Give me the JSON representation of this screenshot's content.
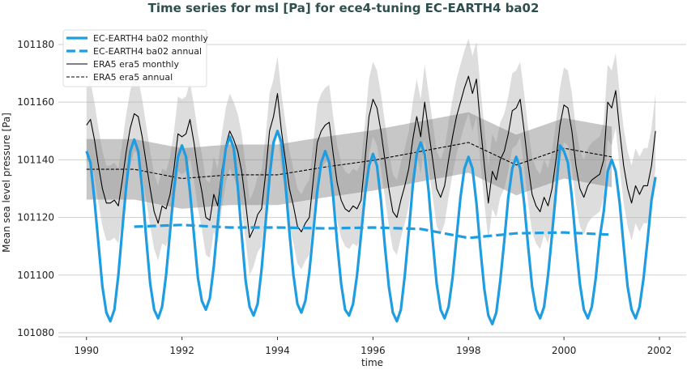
{
  "chart_data": {
    "type": "line",
    "title": "Time series for msl [Pa] for ece4-tuning EC-EARTH4 ba02",
    "xlabel": "time",
    "ylabel": "Mean sea level pressure [Pa]",
    "xlim": [
      1989.41,
      2002.56
    ],
    "ylim": [
      101078.6,
      101185.6
    ],
    "xticks": [
      1990,
      1992,
      1994,
      1996,
      1998,
      2000,
      2002
    ],
    "yticks": [
      101080,
      101100,
      101120,
      101140,
      101160,
      101180
    ],
    "grid": "horizontal",
    "legend_position": "top-left",
    "monthly_start": 1990,
    "series": [
      {
        "name": "EC-EARTH4 ba02 monthly",
        "color": "#1f9de0",
        "style": "solid-thick",
        "frequency": "monthly",
        "values": [
          101143,
          101139,
          101126,
          101111,
          101096,
          101087,
          101084,
          101088,
          101100,
          101116,
          101131,
          101143,
          101147,
          101143,
          101130,
          101113,
          101097,
          101088,
          101085,
          101089,
          101100,
          101115,
          101130,
          101141,
          101145,
          101141,
          101129,
          101114,
          101099,
          101091,
          101088,
          101092,
          101103,
          101118,
          101133,
          101144,
          101148,
          101144,
          101131,
          101114,
          101098,
          101089,
          101086,
          101090,
          101102,
          101118,
          101134,
          101146,
          101150,
          101146,
          101132,
          101115,
          101100,
          101090,
          101087,
          101091,
          101101,
          101115,
          101129,
          101139,
          101143,
          101139,
          101127,
          101111,
          101097,
          101088,
          101086,
          101090,
          101100,
          101114,
          101128,
          101138,
          101142,
          101138,
          101126,
          101110,
          101096,
          101087,
          101084,
          101088,
          101100,
          101115,
          101131,
          101142,
          101146,
          101142,
          101129,
          101112,
          101097,
          101088,
          101085,
          101089,
          101099,
          101113,
          101127,
          101137,
          101141,
          101137,
          101125,
          101109,
          101095,
          101086,
          101083,
          101087,
          101098,
          101112,
          101127,
          101137,
          101141,
          101137,
          101125,
          101110,
          101096,
          101088,
          101085,
          101089,
          101100,
          101114,
          101129,
          101145,
          101143,
          101139,
          101127,
          101111,
          101097,
          101088,
          101085,
          101089,
          101099,
          101113,
          101122,
          101136,
          101140,
          101136,
          101125,
          101110,
          101096,
          101088,
          101085,
          101089,
          101099,
          101112,
          101126,
          101134
        ]
      },
      {
        "name": "EC-EARTH4 ba02 annual",
        "color": "#1f9de0",
        "style": "dashed-thick",
        "frequency": "annual",
        "x": [
          1991,
          1992,
          1993,
          1994,
          1995,
          1996,
          1997,
          1998,
          1999,
          2000,
          2001
        ],
        "values": [
          101116.8,
          101117.4,
          101116.5,
          101116.5,
          101116.2,
          101116.5,
          101116.0,
          101112.9,
          101114.5,
          101114.8,
          101114.0
        ]
      },
      {
        "name": "ERA5 era5 monthly",
        "color": "#000000",
        "style": "solid-thin",
        "frequency": "monthly",
        "spread": 13,
        "values": [
          101152,
          101154,
          101147,
          101138,
          101130,
          101125,
          101125,
          101126,
          101124,
          101133,
          101143,
          101151,
          101156,
          101155,
          101148,
          101139,
          101130,
          101122,
          101118,
          101124,
          101123,
          101128,
          101137,
          101149,
          101148,
          101149,
          101154,
          101146,
          101136,
          101129,
          101120,
          101119,
          101128,
          101124,
          101136,
          101145,
          101150,
          101147,
          101143,
          101136,
          101125,
          101113,
          101116,
          101121,
          101123,
          101135,
          101150,
          101155,
          101163,
          101150,
          101140,
          101130,
          101124,
          101117,
          101115,
          101118,
          101120,
          101133,
          101146,
          101150,
          101152,
          101153,
          101142,
          101132,
          101126,
          101123,
          101122,
          101124,
          101123,
          101126,
          101140,
          101155,
          101161,
          101158,
          101150,
          101140,
          101130,
          101122,
          101120,
          101126,
          101131,
          101137,
          101147,
          101155,
          101148,
          101160,
          101150,
          101140,
          101130,
          101127,
          101131,
          101140,
          101148,
          101155,
          101160,
          101165,
          101169,
          101163,
          101168,
          101152,
          101138,
          101125,
          101136,
          101133,
          101140,
          101143,
          101149,
          101157,
          101158,
          101161,
          101150,
          101138,
          101128,
          101124,
          101122,
          101127,
          101124,
          101130,
          101140,
          101152,
          101159,
          101158,
          101150,
          101138,
          101130,
          101127,
          101131,
          101133,
          101134,
          101135,
          101140,
          101160,
          101158,
          101164,
          101150,
          101138,
          101130,
          101125,
          101131,
          101128,
          101131,
          101131,
          101138,
          101150
        ]
      },
      {
        "name": "ERA5 era5 annual",
        "color": "#000000",
        "style": "dashed-thin",
        "frequency": "annual",
        "spread": 10.5,
        "x": [
          1990,
          1991,
          1992,
          1993,
          1994,
          1995,
          1996,
          1997,
          1998,
          1999,
          2000,
          2001
        ],
        "values": [
          101136.7,
          101136.7,
          101133.5,
          101134.8,
          101134.8,
          101137.5,
          101139.8,
          101142.9,
          101146.0,
          101138.2,
          101144.0,
          101141.0
        ]
      }
    ]
  }
}
